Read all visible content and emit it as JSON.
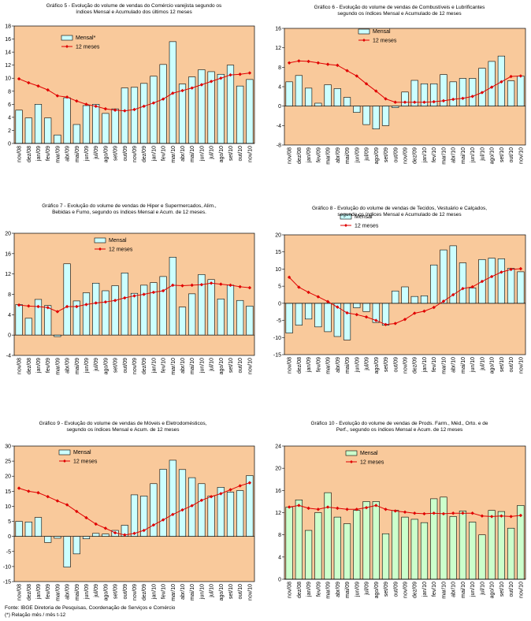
{
  "colors": {
    "plot_bg": "#F9C99B",
    "bar_fill": "#CCFFFF",
    "bar_fill_alt": "#CCFFCC",
    "line": "#E00000",
    "bar_stroke": "#000000"
  },
  "footer": {
    "source": "Fonte: IBGE Diretoria de Pesquisas, Coordenação de Serviços e Comércio",
    "note": "(*) Relação mês / mês t-12"
  },
  "chart_data": [
    {
      "type": "bar",
      "title": "Gráfico 5 - Evolução do volume de vendas do Comércio varejista segundo os\níndices Mensal e Acumulado dos últimos 12 meses",
      "categories": [
        "nov/08",
        "dez/08",
        "jan/09",
        "fev/09",
        "mar/09",
        "abr/09",
        "mai/09",
        "jun/09",
        "jul/09",
        "ago/09",
        "set/09",
        "out/09",
        "nov/09",
        "dez/09",
        "jan/10",
        "fev/10",
        "mar/10",
        "abr/10",
        "mai/10",
        "jun/10",
        "jul/10",
        "ago/10",
        "set/10",
        "out/10",
        "nov/10"
      ],
      "series": [
        {
          "name": "Mensal*",
          "kind": "bar",
          "values": [
            5.1,
            3.9,
            6.0,
            3.9,
            1.3,
            7.0,
            2.9,
            5.8,
            6.0,
            4.6,
            5.3,
            8.5,
            8.6,
            9.2,
            10.3,
            12.1,
            15.6,
            9.1,
            10.2,
            11.3,
            11.0,
            10.6,
            12.0,
            8.8,
            9.8
          ]
        },
        {
          "name": "12 meses",
          "kind": "line",
          "values": [
            9.9,
            9.3,
            8.8,
            8.2,
            7.3,
            7.1,
            6.5,
            6.0,
            5.7,
            5.3,
            5.1,
            5.0,
            5.2,
            5.7,
            6.2,
            6.8,
            7.7,
            8.1,
            8.5,
            9.0,
            9.5,
            10.0,
            10.5,
            10.6,
            10.8
          ]
        }
      ],
      "ylim": [
        0,
        18
      ],
      "yticks": [
        0,
        2,
        4,
        6,
        8,
        10,
        12,
        14,
        16,
        18
      ]
    },
    {
      "type": "bar",
      "title": "Gráfico 6 - Evolução do volume de vendas de Combustíveis e Lubrificantes\nsegundo os índices Mensal e Acumulado de 12 meses",
      "categories": [
        "nov/08",
        "dez/08",
        "jan/09",
        "fev/09",
        "mar/09",
        "abr/09",
        "mai/09",
        "jun/09",
        "jul/09",
        "ago/09",
        "set/09",
        "out/09",
        "nov/09",
        "dez/09",
        "jan/10",
        "fev/10",
        "mar/10",
        "abr/10",
        "mai/10",
        "jun/10",
        "jul/10",
        "ago/10",
        "set/10",
        "out/10",
        "nov/10"
      ],
      "series": [
        {
          "name": "Mensal",
          "kind": "bar",
          "values": [
            5.0,
            6.3,
            3.7,
            0.6,
            4.4,
            3.6,
            1.8,
            -1.3,
            -3.8,
            -4.7,
            -4.0,
            -0.3,
            2.9,
            5.3,
            4.6,
            4.6,
            6.5,
            5.0,
            5.7,
            5.7,
            7.8,
            9.2,
            10.3,
            5.2,
            6.2
          ]
        },
        {
          "name": "12 meses",
          "kind": "line",
          "values": [
            8.9,
            9.3,
            9.2,
            8.9,
            8.6,
            8.4,
            7.3,
            6.2,
            4.6,
            3.1,
            1.5,
            0.8,
            0.8,
            0.8,
            0.8,
            0.9,
            1.1,
            1.4,
            1.6,
            2.0,
            2.8,
            3.9,
            5.0,
            6.1,
            6.2
          ]
        }
      ],
      "ylim": [
        -8,
        16
      ],
      "yticks": [
        -8,
        -4,
        0,
        4,
        8,
        12,
        16
      ]
    },
    {
      "type": "bar",
      "title": "Gráfico 7 - Evolução do volume de vendas de Hiper e Supermercados, Alim.,\nBebidas e Fumo, segundo os índices Mensal e Acum. de 12 meses.",
      "categories": [
        "nov/08",
        "dez/08",
        "jan/09",
        "fev/09",
        "mar/09",
        "abr/09",
        "mai/09",
        "jun/09",
        "jul/09",
        "ago/09",
        "set/09",
        "out/09",
        "nov/09",
        "dez/09",
        "jan/10",
        "fev/10",
        "mar/10",
        "abr/10",
        "mai/10",
        "jun/10",
        "jul/10",
        "ago/10",
        "set/10",
        "out/10",
        "nov/10"
      ],
      "series": [
        {
          "name": "Mensal",
          "kind": "bar",
          "values": [
            6.0,
            3.3,
            7.0,
            5.8,
            -0.3,
            14.0,
            6.7,
            8.3,
            10.2,
            8.7,
            9.7,
            12.2,
            8.2,
            9.8,
            10.3,
            11.5,
            15.3,
            5.5,
            8.1,
            11.9,
            10.9,
            7.1,
            9.8,
            6.8,
            5.7
          ]
        },
        {
          "name": "12 meses",
          "kind": "line",
          "values": [
            5.9,
            5.7,
            5.6,
            5.4,
            4.6,
            5.6,
            5.6,
            6.0,
            6.3,
            6.5,
            6.8,
            7.3,
            7.7,
            8.0,
            8.4,
            8.7,
            9.8,
            9.7,
            9.8,
            9.9,
            10.2,
            10.0,
            9.8,
            9.5,
            9.3
          ]
        }
      ],
      "ylim": [
        -4,
        20
      ],
      "yticks": [
        -4,
        0,
        4,
        8,
        12,
        16,
        20
      ]
    },
    {
      "type": "bar",
      "title": "Gráfico 8 - Evolução do volume de vendas de Tecidos, Vestuário e Calçados,\nsegundo os índices Mensal e Acumulado de 12 meses",
      "categories": [
        "nov/08",
        "dez/08",
        "jan/09",
        "fev/09",
        "mar/09",
        "abr/09",
        "mai/09",
        "jun/09",
        "jul/09",
        "ago/09",
        "set/09",
        "out/09",
        "nov/09",
        "dez/09",
        "jan/10",
        "fev/10",
        "mar/10",
        "abr/10",
        "mai/10",
        "jun/10",
        "jul/10",
        "ago/10",
        "set/10",
        "out/10",
        "nov/10"
      ],
      "series": [
        {
          "name": "Mensal",
          "kind": "bar",
          "values": [
            -8.7,
            -6.4,
            -4.6,
            -6.9,
            -8.3,
            -9.7,
            -10.7,
            -1.3,
            -2.4,
            -5.6,
            -6.4,
            3.6,
            4.8,
            2.0,
            2.2,
            11.2,
            15.6,
            16.8,
            11.8,
            4.5,
            12.8,
            13.2,
            13.0,
            10.2,
            9.2
          ]
        },
        {
          "name": "12 meses",
          "kind": "line",
          "values": [
            7.6,
            4.7,
            3.2,
            1.9,
            0.5,
            -1.1,
            -2.8,
            -3.3,
            -4.0,
            -5.0,
            -6.2,
            -5.9,
            -4.7,
            -2.9,
            -2.3,
            -1.2,
            0.6,
            2.5,
            4.3,
            4.8,
            6.4,
            7.8,
            9.1,
            9.9,
            10.1
          ]
        }
      ],
      "ylim": [
        -15,
        20
      ],
      "yticks": [
        -15,
        -10,
        -5,
        0,
        5,
        10,
        15,
        20
      ]
    },
    {
      "type": "bar",
      "title": "Gráfico 9 - Evolução do volume de vendas de Móveis e Eletrodomésticos,\nsegundo os índices Mensal e Acum. de 12 meses",
      "categories": [
        "nov/08",
        "dez/08",
        "jan/09",
        "fev/09",
        "mar/09",
        "abr/09",
        "mai/09",
        "jun/09",
        "jul/09",
        "ago/09",
        "set/09",
        "out/09",
        "nov/09",
        "dez/09",
        "jan/10",
        "fev/10",
        "mar/10",
        "abr/10",
        "mai/10",
        "jun/10",
        "jul/10",
        "ago/10",
        "set/10",
        "out/10",
        "nov/10"
      ],
      "series": [
        {
          "name": "Mensal",
          "kind": "bar",
          "values": [
            5.0,
            4.8,
            6.3,
            -2.0,
            -0.6,
            -10.2,
            -5.8,
            -0.8,
            1.0,
            0.8,
            2.0,
            3.7,
            13.8,
            13.4,
            17.5,
            22.3,
            25.3,
            22.2,
            19.5,
            17.5,
            13.4,
            16.3,
            14.7,
            15.2,
            20.2
          ]
        },
        {
          "name": "12 meses",
          "kind": "line",
          "values": [
            16.0,
            15.0,
            14.5,
            13.2,
            11.8,
            10.5,
            8.3,
            6.2,
            4.1,
            2.7,
            1.2,
            0.5,
            1.0,
            2.0,
            3.8,
            5.5,
            7.3,
            8.8,
            10.2,
            12.0,
            13.2,
            14.2,
            15.5,
            16.8,
            17.8
          ]
        }
      ],
      "ylim": [
        -15,
        30
      ],
      "yticks": [
        -15,
        -10,
        -5,
        0,
        5,
        10,
        15,
        20,
        25,
        30
      ]
    },
    {
      "type": "bar",
      "title": "Gráfico 10 - Evolução do volume de vendas de Prods. Farm., Méd., Orto. e de\nPerf., segundo os índices Mensal e Acum. de 12 meses",
      "categories": [
        "nov/08",
        "dez/08",
        "jan/09",
        "fev/09",
        "mar/09",
        "abr/09",
        "mai/09",
        "jun/09",
        "jul/09",
        "ago/09",
        "set/09",
        "out/09",
        "nov/09",
        "dez/09",
        "jan/10",
        "fev/10",
        "mar/10",
        "abr/10",
        "mai/10",
        "jun/10",
        "jul/10",
        "ago/10",
        "set/10",
        "out/10",
        "nov/10"
      ],
      "series": [
        {
          "name": "Mensal",
          "kind": "bar",
          "values": [
            13.0,
            14.3,
            8.8,
            12.0,
            15.6,
            11.2,
            10.0,
            12.4,
            14.0,
            14.0,
            8.2,
            12.4,
            11.2,
            10.8,
            10.2,
            14.5,
            14.8,
            11.3,
            12.3,
            10.3,
            8.0,
            12.4,
            12.2,
            9.2,
            13.3
          ]
        },
        {
          "name": "12 meses",
          "kind": "line",
          "values": [
            13.0,
            13.3,
            12.8,
            12.6,
            13.0,
            12.8,
            12.6,
            12.6,
            12.9,
            13.3,
            12.6,
            12.3,
            12.1,
            11.9,
            11.8,
            11.9,
            11.8,
            11.9,
            11.9,
            11.9,
            11.4,
            11.3,
            11.4,
            11.3,
            11.5
          ]
        }
      ],
      "ylim": [
        0,
        24
      ],
      "yticks": [
        0,
        4,
        8,
        12,
        16,
        20,
        24
      ]
    }
  ]
}
